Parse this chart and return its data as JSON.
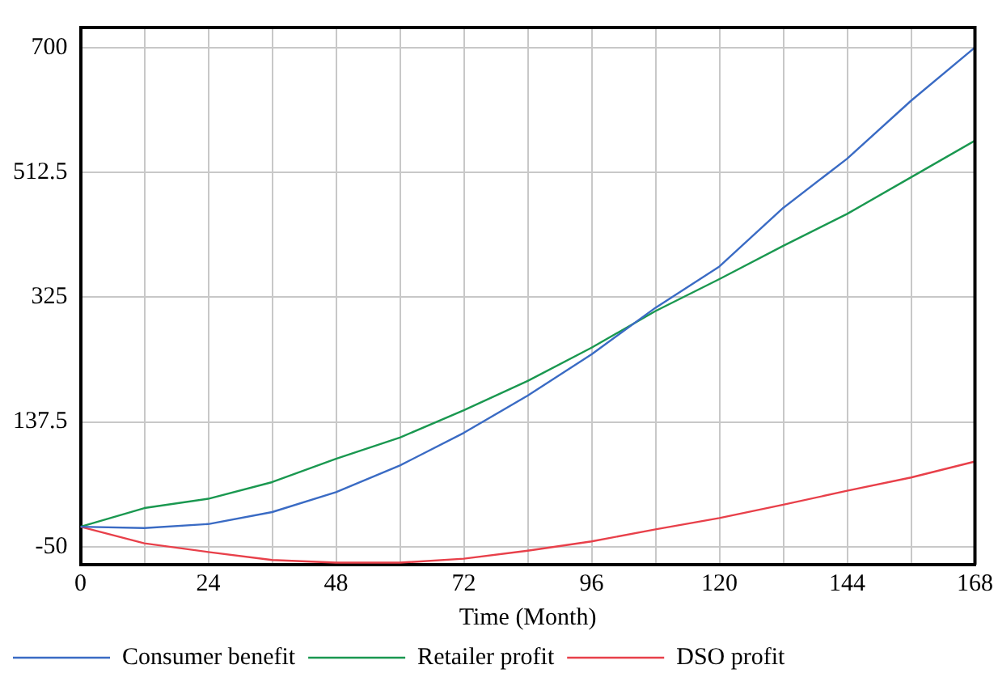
{
  "chart_data": {
    "type": "line",
    "xlabel": "Time (Month)",
    "x": [
      0,
      12,
      24,
      36,
      48,
      60,
      72,
      84,
      96,
      108,
      120,
      132,
      144,
      156,
      168
    ],
    "series": [
      {
        "name": "Consumer benefit",
        "color": "#3a6bc4",
        "values": [
          -20,
          -22,
          -16,
          2,
          32,
          72,
          121,
          177,
          239,
          309,
          371,
          459,
          533,
          620,
          700
        ]
      },
      {
        "name": "Retailer profit",
        "color": "#1a9850",
        "values": [
          -20,
          8,
          22,
          47,
          82,
          114,
          155,
          199,
          249,
          304,
          352,
          402,
          450,
          505,
          560
        ]
      },
      {
        "name": "DSO profit",
        "color": "#e8404a",
        "values": [
          -20,
          -45,
          -58,
          -70,
          -74,
          -74,
          -68,
          -56,
          -42,
          -24,
          -7,
          13,
          34,
          54,
          78
        ]
      }
    ],
    "xlim": [
      0,
      168
    ],
    "xticks": [
      0,
      {
        "value": 12,
        "label": null
      },
      24,
      {
        "value": 36,
        "label": null
      },
      48,
      {
        "value": 60,
        "label": null
      },
      72,
      {
        "value": 84,
        "label": null
      },
      96,
      {
        "value": 108,
        "label": null
      },
      120,
      {
        "value": 132,
        "label": null
      },
      144,
      {
        "value": 156,
        "label": null
      },
      168
    ],
    "ylim": [
      -77,
      730
    ],
    "yticks": [
      -50,
      137.5,
      325,
      512.5,
      700
    ],
    "grid": true,
    "legend": "bottom",
    "marker": "none",
    "line_style": "solid"
  }
}
